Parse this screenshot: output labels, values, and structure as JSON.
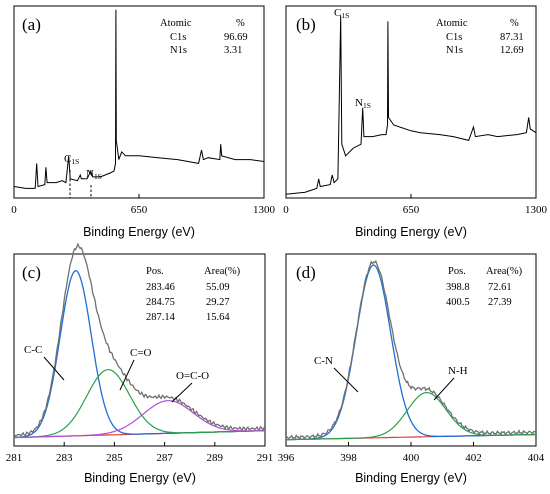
{
  "chart_data": [
    {
      "panel": "(a)",
      "type": "line",
      "xlabel": "Binding Energy (eV)",
      "xlim": [
        0,
        1300
      ],
      "xticks": [
        "0",
        "650",
        "1300"
      ],
      "table": {
        "headers": [
          "Atomic",
          "%"
        ],
        "rows": [
          [
            "C1s",
            "96.69"
          ],
          [
            "N1s",
            "3.31"
          ]
        ]
      },
      "annotations": [
        "C1S",
        "N1S"
      ],
      "series": [
        {
          "color": "#000000",
          "points": [
            [
              0,
              0.06
            ],
            [
              60,
              0.05
            ],
            [
              110,
              0.05
            ],
            [
              118,
              0.18
            ],
            [
              125,
              0.06
            ],
            [
              160,
              0.07
            ],
            [
              166,
              0.16
            ],
            [
              172,
              0.08
            ],
            [
              220,
              0.08
            ],
            [
              250,
              0.09
            ],
            [
              270,
              0.08
            ],
            [
              284.5,
              0.22
            ],
            [
              292,
              0.1
            ],
            [
              330,
              0.09
            ],
            [
              345,
              0.12
            ],
            [
              350,
              0.1
            ],
            [
              380,
              0.1
            ],
            [
              399,
              0.14
            ],
            [
              410,
              0.11
            ],
            [
              450,
              0.11
            ],
            [
              500,
              0.13
            ],
            [
              520,
              0.14
            ],
            [
              528,
              0.18
            ],
            [
              530,
              0.98
            ],
            [
              532,
              0.3
            ],
            [
              545,
              0.2
            ],
            [
              560,
              0.24
            ],
            [
              580,
              0.22
            ],
            [
              650,
              0.22
            ],
            [
              750,
              0.21
            ],
            [
              850,
              0.2
            ],
            [
              960,
              0.18
            ],
            [
              975,
              0.25
            ],
            [
              985,
              0.2
            ],
            [
              1010,
              0.21
            ],
            [
              1070,
              0.2
            ],
            [
              1075,
              0.28
            ],
            [
              1080,
              0.22
            ],
            [
              1150,
              0.2
            ],
            [
              1230,
              0.2
            ],
            [
              1300,
              0.19
            ]
          ]
        }
      ]
    },
    {
      "panel": "(b)",
      "type": "line",
      "xlabel": "Binding Energy (eV)",
      "xlim": [
        0,
        1300
      ],
      "xticks": [
        "0",
        "650",
        "1300"
      ],
      "table": {
        "headers": [
          "Atomic",
          "%"
        ],
        "rows": [
          [
            "C1s",
            "87.31"
          ],
          [
            "N1s",
            "12.69"
          ]
        ]
      },
      "annotations": [
        "C1S",
        "N1S"
      ],
      "series": [
        {
          "color": "#000000",
          "points": [
            [
              0,
              0.02
            ],
            [
              100,
              0.03
            ],
            [
              160,
              0.05
            ],
            [
              170,
              0.1
            ],
            [
              178,
              0.06
            ],
            [
              230,
              0.07
            ],
            [
              240,
              0.12
            ],
            [
              250,
              0.08
            ],
            [
              270,
              0.1
            ],
            [
              284.5,
              0.95
            ],
            [
              290,
              0.28
            ],
            [
              310,
              0.22
            ],
            [
              350,
              0.26
            ],
            [
              390,
              0.28
            ],
            [
              399,
              0.47
            ],
            [
              405,
              0.32
            ],
            [
              450,
              0.32
            ],
            [
              500,
              0.33
            ],
            [
              520,
              0.33
            ],
            [
              528,
              0.38
            ],
            [
              530,
              0.92
            ],
            [
              533,
              0.42
            ],
            [
              560,
              0.38
            ],
            [
              650,
              0.35
            ],
            [
              700,
              0.34
            ],
            [
              800,
              0.33
            ],
            [
              870,
              0.32
            ],
            [
              950,
              0.3
            ],
            [
              975,
              0.37
            ],
            [
              985,
              0.32
            ],
            [
              1050,
              0.33
            ],
            [
              1100,
              0.32
            ],
            [
              1200,
              0.33
            ],
            [
              1250,
              0.34
            ],
            [
              1262,
              0.42
            ],
            [
              1270,
              0.36
            ],
            [
              1300,
              0.34
            ]
          ]
        }
      ]
    },
    {
      "panel": "(c)",
      "type": "line",
      "xlabel": "Binding Energy (eV)",
      "xlim": [
        281,
        291
      ],
      "xticks": [
        "281",
        "283",
        "285",
        "287",
        "289",
        "291"
      ],
      "table": {
        "headers": [
          "Pos.",
          "Area(%)"
        ],
        "rows": [
          [
            "283.46",
            "55.09"
          ],
          [
            "284.75",
            "29.27"
          ],
          [
            "287.14",
            "15.64"
          ]
        ]
      },
      "baseline": 0.08,
      "peaks": [
        {
          "label": "C-C",
          "center": 283.46,
          "height": 0.86,
          "sigma": 0.62,
          "color": "#1f6fd6"
        },
        {
          "label": "C=O",
          "center": 284.75,
          "height": 0.34,
          "sigma": 0.85,
          "color": "#2aa04a"
        },
        {
          "label": "O=C-O",
          "center": 287.14,
          "height": 0.17,
          "sigma": 1.0,
          "color": "#b04ed6"
        }
      ],
      "envelope_color": "#707070",
      "baseline_color": "#e0403a",
      "annotations": [
        "C-C",
        "C=O",
        "O=C-O"
      ]
    },
    {
      "panel": "(d)",
      "type": "line",
      "xlabel": "Binding Energy (eV)",
      "xlim": [
        396,
        404
      ],
      "xticks": [
        "396",
        "398",
        "400",
        "402",
        "404"
      ],
      "table": {
        "headers": [
          "Pos.",
          "Area(%)"
        ],
        "rows": [
          [
            "398.8",
            "72.61"
          ],
          [
            "400.5",
            "27.39"
          ]
        ]
      },
      "baseline": 0.06,
      "peaks": [
        {
          "label": "C-N",
          "center": 398.8,
          "height": 0.9,
          "sigma": 0.55,
          "color": "#1f6fd6"
        },
        {
          "label": "N-H",
          "center": 400.5,
          "height": 0.23,
          "sigma": 0.62,
          "color": "#2aa04a"
        }
      ],
      "envelope_color": "#707070",
      "baseline_color": "#e0403a",
      "annotations": [
        "C-N",
        "N-H"
      ]
    }
  ]
}
